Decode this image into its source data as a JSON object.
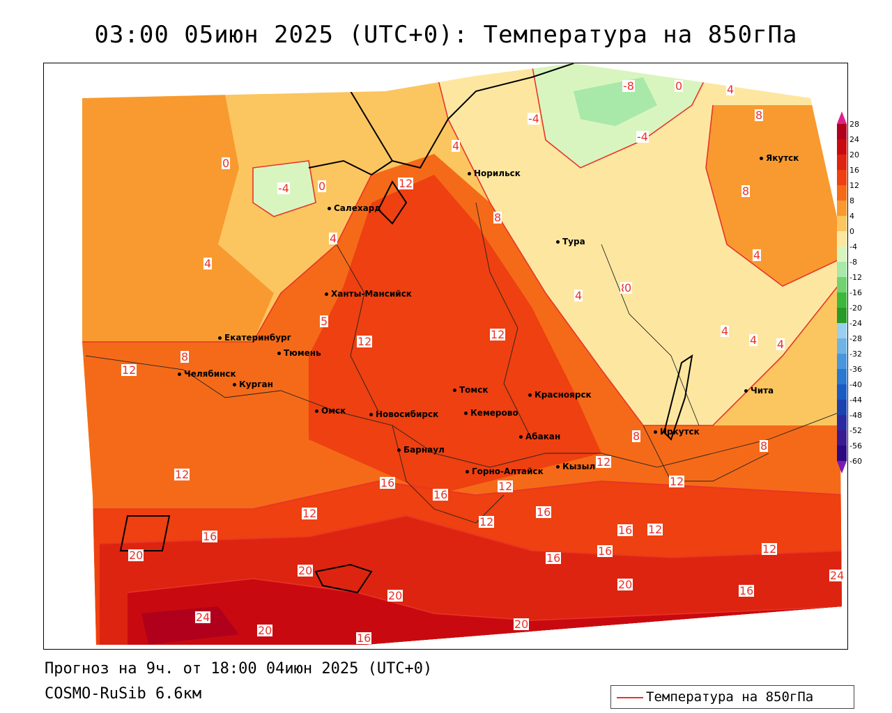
{
  "title": "03:00 05июн 2025 (UTC+0): Температура на 850гПа",
  "forecast_line": "Прогноз на 9ч. от 18:00 04июн 2025 (UTC+0)",
  "model_line": "COSMO-RuSib 6.6км",
  "legend": {
    "label": "Температура на 850гПа",
    "line_color": "#e8332a"
  },
  "colorbar": {
    "ticks": [
      "28",
      "24",
      "20",
      "16",
      "12",
      "8",
      "4",
      "0",
      "-4",
      "-8",
      "-12",
      "-16",
      "-20",
      "-24",
      "-28",
      "-32",
      "-36",
      "-40",
      "-44",
      "-48",
      "-52",
      "-56",
      "-60"
    ],
    "colors": [
      "#b0001c",
      "#c80a10",
      "#dd2410",
      "#ee4010",
      "#f56a18",
      "#f89a30",
      "#fbc660",
      "#fde7a0",
      "#d8f5c0",
      "#a8e8a8",
      "#70d270",
      "#3cb83c",
      "#289a28",
      "#9ad0ee",
      "#70b4e6",
      "#4a96dc",
      "#2a78d0",
      "#1a5ac4",
      "#1a42b0",
      "#2a2aa0",
      "#3a1a90",
      "#2a0a80"
    ]
  },
  "cities": [
    {
      "name": "Якутск"
    },
    {
      "name": "Норильск"
    },
    {
      "name": "Салехард"
    },
    {
      "name": "Тура"
    },
    {
      "name": "Ханты-Мансийск"
    },
    {
      "name": "Екатеринбург"
    },
    {
      "name": "Тюмень"
    },
    {
      "name": "Челябинск"
    },
    {
      "name": "Курган"
    },
    {
      "name": "Омск"
    },
    {
      "name": "Новосибирск"
    },
    {
      "name": "Томск"
    },
    {
      "name": "Красноярск"
    },
    {
      "name": "Кемерово"
    },
    {
      "name": "Абакан"
    },
    {
      "name": "Барнаул"
    },
    {
      "name": "Горно-Алтайск"
    },
    {
      "name": "Кызыл"
    },
    {
      "name": "Иркутск"
    },
    {
      "name": "Чита"
    }
  ],
  "contour_labels": [
    "-8",
    "0",
    "4",
    "8",
    "-4",
    "-4",
    "4",
    "0",
    "-4",
    "0",
    "12",
    "8",
    "8",
    "4",
    "4",
    "8",
    "4",
    "0",
    "4",
    "4",
    "4",
    "4",
    "5",
    "12",
    "12",
    "12",
    "8",
    "12",
    "8",
    "8",
    "12",
    "12",
    "12",
    "12",
    "16",
    "16",
    "12",
    "12",
    "16",
    "16",
    "16",
    "12",
    "16",
    "16",
    "12",
    "20",
    "20",
    "20",
    "20",
    "24",
    "20",
    "16",
    "20",
    "16",
    "24"
  ]
}
